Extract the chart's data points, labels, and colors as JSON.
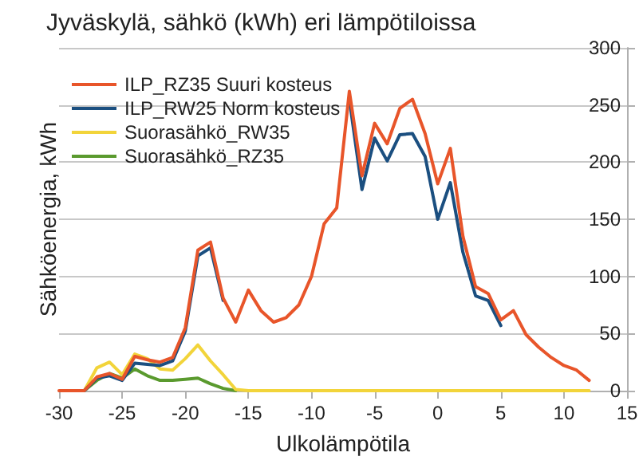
{
  "chart_data": {
    "type": "line",
    "title": "Jyväskylä, sähkö (kWh) eri lämpötiloissa",
    "xlabel": "Ulkolämpötila",
    "ylabel": "Sähköenergia, kWh",
    "x": [
      -30,
      -29,
      -28,
      -27,
      -26,
      -25,
      -24,
      -23,
      -22,
      -21,
      -20,
      -19,
      -18,
      -17,
      -16,
      -15,
      -14,
      -13,
      -12,
      -11,
      -10,
      -9,
      -8,
      -7,
      -6,
      -5,
      -4,
      -3,
      -2,
      -1,
      0,
      1,
      2,
      3,
      4,
      5,
      6,
      7,
      8,
      9,
      10,
      11,
      12
    ],
    "series": [
      {
        "name": "ILP_RZ35 Suuri kosteus",
        "color": "#e8552a",
        "values": [
          0,
          0,
          0,
          12,
          15,
          10,
          30,
          27,
          25,
          29,
          55,
          123,
          130,
          81,
          60,
          88,
          70,
          60,
          64,
          75,
          100,
          146,
          160,
          262,
          188,
          234,
          216,
          247,
          255,
          225,
          181,
          212,
          135,
          91,
          85,
          62,
          70,
          49,
          38,
          29,
          22,
          18,
          9
        ]
      },
      {
        "name": "ILP_RW25 Norm kosteus",
        "color": "#1b4f80",
        "values": [
          null,
          null,
          0,
          11,
          13,
          9,
          24,
          23,
          22,
          26,
          52,
          118,
          125,
          79,
          null,
          null,
          null,
          null,
          null,
          null,
          null,
          null,
          null,
          255,
          176,
          221,
          201,
          224,
          225,
          205,
          150,
          182,
          121,
          83,
          79,
          57,
          null,
          null,
          null,
          null,
          null,
          null,
          null
        ]
      },
      {
        "name": "Suorasähkö_RW35",
        "color": "#f2d43a",
        "values": [
          null,
          null,
          0,
          20,
          25,
          14,
          32,
          28,
          19,
          18,
          28,
          40,
          26,
          14,
          1,
          0,
          0,
          0,
          0,
          0,
          0,
          0,
          0,
          0,
          0,
          0,
          0,
          0,
          0,
          0,
          0,
          0,
          0,
          0,
          0,
          0,
          0,
          0,
          0,
          0,
          0,
          0,
          0
        ]
      },
      {
        "name": "Suorasähkö_RZ35",
        "color": "#5a9a2e",
        "values": [
          null,
          null,
          0,
          9,
          15,
          11,
          19,
          13,
          9,
          9,
          10,
          11,
          6,
          2,
          0,
          null,
          null,
          null,
          null,
          null,
          null,
          null,
          null,
          null,
          null,
          null,
          null,
          null,
          null,
          null,
          null,
          null,
          null,
          null,
          null,
          null,
          null,
          null,
          null,
          null,
          null,
          null,
          null
        ]
      }
    ],
    "xlim": [
      -30,
      15
    ],
    "xticks": [
      -30,
      -25,
      -20,
      -15,
      -10,
      -5,
      0,
      5,
      10,
      15
    ],
    "ylim": [
      0,
      300
    ],
    "yticks": [
      0,
      50,
      100,
      150,
      200,
      250,
      300
    ],
    "grid": "y",
    "legend": "top left",
    "marker": "none",
    "line_style": "solid"
  }
}
